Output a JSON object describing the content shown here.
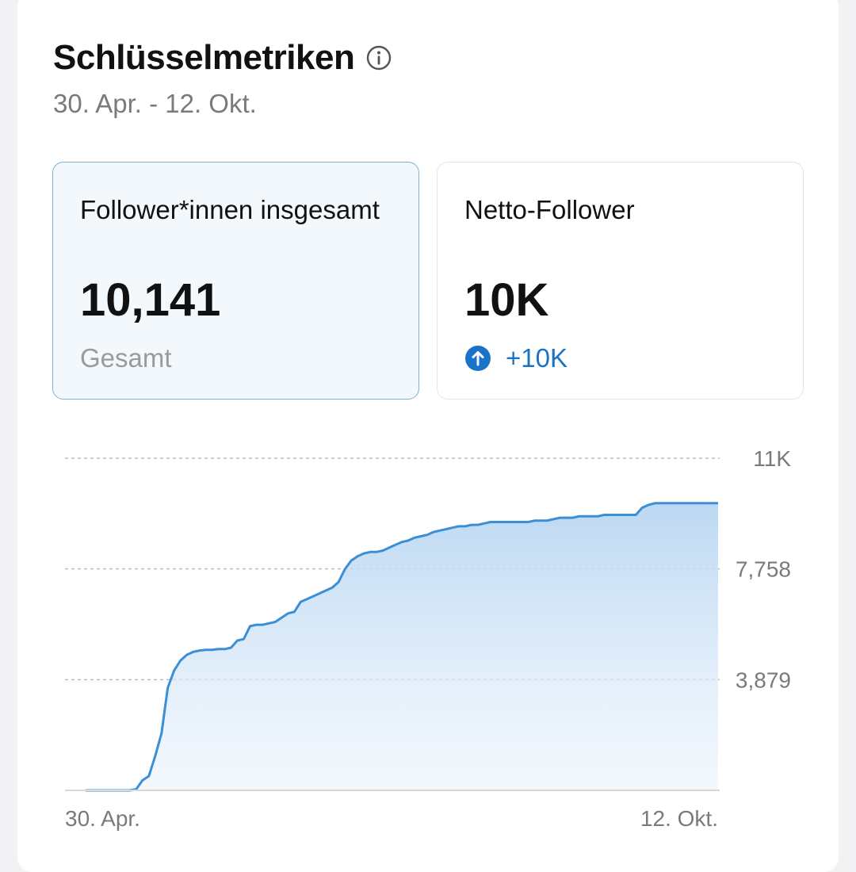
{
  "header": {
    "title": "Schlüsselmetriken",
    "date_range": "30. Apr. - 12. Okt."
  },
  "metrics": [
    {
      "label": "Follower*innen insgesamt",
      "value": "10,141",
      "sub": "Gesamt"
    },
    {
      "label": "Netto-Follower",
      "value": "10K",
      "delta": "+10K"
    }
  ],
  "colors": {
    "accent": "#1a73c7",
    "line": "#3a8fd6",
    "selected_border": "#7fb2d8"
  },
  "chart_data": {
    "type": "area",
    "title": "",
    "x_labels": [
      "30. Apr.",
      "12. Okt."
    ],
    "y_ticks": [
      "11K",
      "7,758",
      "3,879"
    ],
    "ylim": [
      0,
      11636
    ],
    "x": [
      0,
      1,
      2,
      3,
      4,
      5,
      6,
      7,
      8,
      9,
      10,
      11,
      12,
      13,
      14,
      15,
      16,
      17,
      18,
      19,
      20,
      21,
      22,
      23,
      24,
      25,
      26,
      27,
      28,
      29,
      30,
      31,
      32,
      33,
      34,
      35,
      36,
      37,
      38,
      39,
      40,
      41,
      42,
      43,
      44,
      45,
      46,
      47,
      48,
      49,
      50,
      51,
      52,
      53,
      54,
      55,
      56,
      57,
      58,
      59,
      60,
      61,
      62,
      63,
      64,
      65,
      66,
      67,
      68,
      69,
      70,
      71,
      72,
      73,
      74,
      75,
      76,
      77,
      78,
      79,
      80,
      81,
      82,
      83,
      84,
      85,
      86,
      87,
      88,
      89,
      90,
      91,
      92,
      93,
      94,
      95,
      96,
      97,
      98,
      99,
      100
    ],
    "values": [
      0,
      0,
      0,
      0,
      0,
      0,
      0,
      0,
      40,
      350,
      500,
      1200,
      2000,
      3600,
      4200,
      4550,
      4750,
      4850,
      4900,
      4920,
      4920,
      4950,
      4950,
      5000,
      5250,
      5300,
      5750,
      5800,
      5800,
      5850,
      5900,
      6050,
      6200,
      6250,
      6600,
      6700,
      6800,
      6900,
      7000,
      7100,
      7300,
      7750,
      8050,
      8200,
      8300,
      8350,
      8350,
      8400,
      8500,
      8600,
      8700,
      8750,
      8850,
      8900,
      8950,
      9050,
      9100,
      9150,
      9200,
      9250,
      9250,
      9300,
      9300,
      9350,
      9400,
      9400,
      9400,
      9400,
      9400,
      9400,
      9400,
      9450,
      9450,
      9450,
      9500,
      9550,
      9550,
      9550,
      9600,
      9600,
      9600,
      9600,
      9650,
      9650,
      9650,
      9650,
      9650,
      9650,
      9900,
      10000,
      10060,
      10060,
      10060,
      10060,
      10060,
      10060,
      10060,
      10060,
      10060,
      10060,
      10060
    ]
  }
}
